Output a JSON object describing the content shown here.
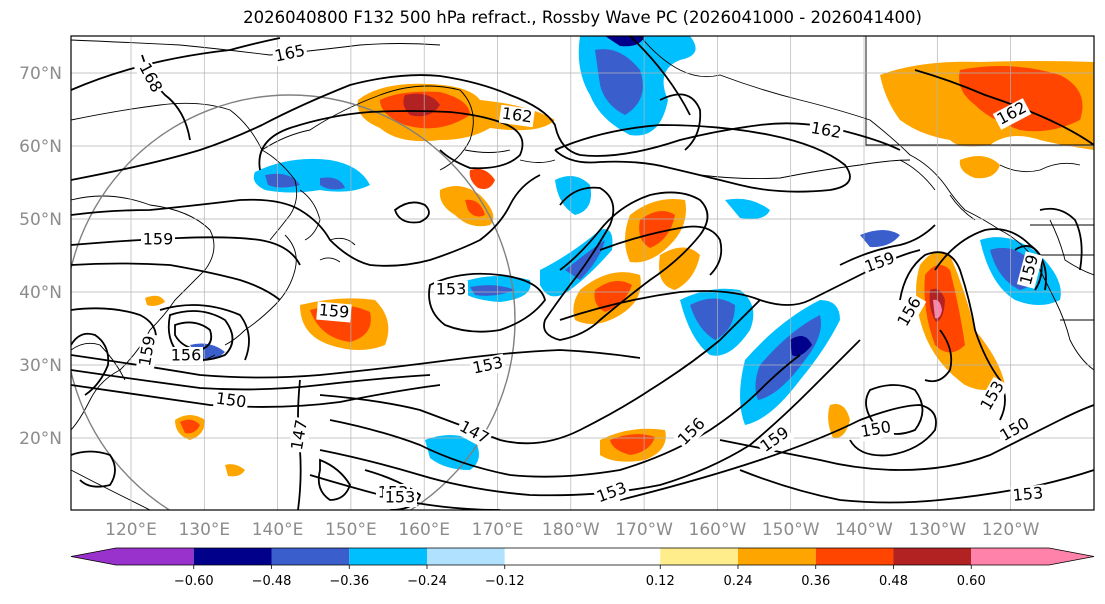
{
  "title": "2026040800 F132 500 hPa refract., Rossby Wave PC (2026041000 - 2026041400)",
  "colors": {
    "land_line": "#000000",
    "grid": "#b3b3b3",
    "circle": "#808080",
    "axis_label": "#8c8c8c"
  },
  "map": {
    "lat_ticks": [
      {
        "value": 70,
        "label": "70°N"
      },
      {
        "value": 60,
        "label": "60°N"
      },
      {
        "value": 50,
        "label": "50°N"
      },
      {
        "value": 40,
        "label": "40°N"
      },
      {
        "value": 30,
        "label": "30°N"
      },
      {
        "value": 20,
        "label": "20°N"
      }
    ],
    "lon_ticks": [
      {
        "value": 120,
        "label": "120°E"
      },
      {
        "value": 130,
        "label": "130°E"
      },
      {
        "value": 140,
        "label": "140°E"
      },
      {
        "value": 150,
        "label": "150°E"
      },
      {
        "value": 160,
        "label": "160°E"
      },
      {
        "value": 170,
        "label": "170°E"
      },
      {
        "value": 180,
        "label": "180°W"
      },
      {
        "value": 190,
        "label": "170°W"
      },
      {
        "value": 200,
        "label": "160°W"
      },
      {
        "value": 210,
        "label": "150°W"
      },
      {
        "value": 220,
        "label": "140°W"
      },
      {
        "value": 230,
        "label": "130°W"
      },
      {
        "value": 240,
        "label": "120°W"
      }
    ],
    "contour_labels": [
      "168",
      "165",
      "162",
      "162",
      "162",
      "159",
      "159",
      "159",
      "159",
      "159",
      "159",
      "156",
      "156",
      "156",
      "153",
      "153",
      "153",
      "153",
      "153",
      "153",
      "150",
      "150",
      "150",
      "147",
      "147",
      "153"
    ],
    "colorbar": {
      "levels": [
        -0.72,
        -0.6,
        -0.48,
        -0.36,
        -0.24,
        -0.12,
        0.12,
        0.24,
        0.36,
        0.48,
        0.6,
        0.72
      ],
      "colors": [
        "#9932cc",
        "#00008b",
        "#3a5fcd",
        "#00bfff",
        "#b0e2ff",
        "#ffffff",
        "#ffec8b",
        "#ffa500",
        "#ff4500",
        "#b22222",
        "#ff82ab"
      ],
      "extend_low_color": "#9932cc",
      "extend_high_color": "#ff82ab",
      "tick_labels": [
        "−0.60",
        "−0.48",
        "−0.36",
        "−0.24",
        "−0.12",
        "0.12",
        "0.24",
        "0.36",
        "0.48",
        "0.60"
      ]
    }
  }
}
